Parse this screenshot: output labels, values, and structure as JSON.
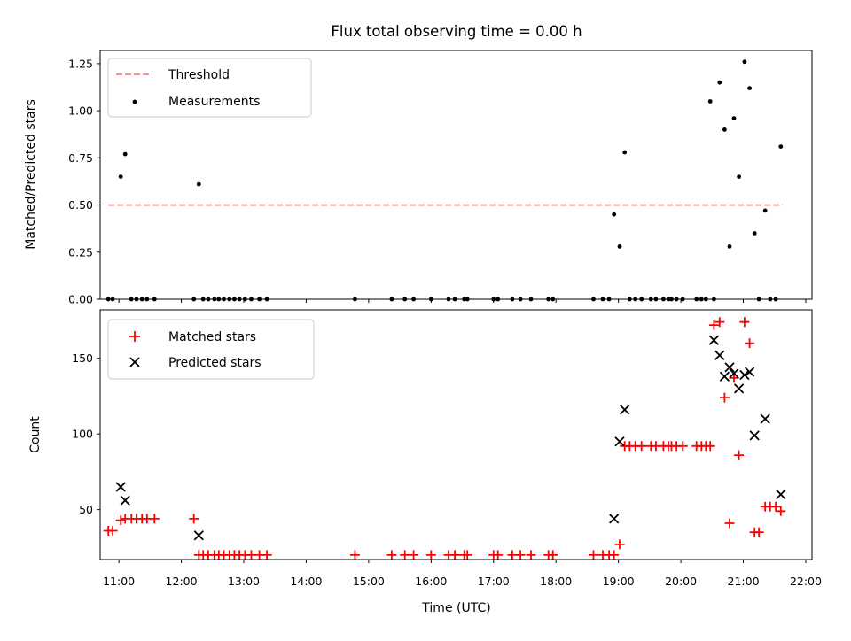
{
  "chart_data": [
    {
      "type": "scatter",
      "title": "Flux total observing time = 0.00 h",
      "xlabel": "",
      "ylabel": "Matched/Predicted stars",
      "xlim_hours": [
        10.7,
        22.1
      ],
      "ylim": [
        0,
        1.32
      ],
      "yticks": [
        "0.00",
        "0.25",
        "0.50",
        "0.75",
        "1.00",
        "1.25"
      ],
      "ytick_values": [
        0,
        0.25,
        0.5,
        0.75,
        1.0,
        1.25
      ],
      "legend_position": "top-left",
      "threshold": {
        "name": "Threshold",
        "y": 0.5,
        "x_start": 10.83,
        "x_end": 21.63,
        "color": "#ff7f7f",
        "style": "dashed"
      },
      "series": [
        {
          "name": "Measurements",
          "color": "#000000",
          "marker": "dot",
          "x": [
            10.83,
            10.9,
            11.03,
            11.1,
            11.2,
            11.28,
            11.37,
            11.45,
            11.57,
            12.2,
            12.28,
            12.35,
            12.43,
            12.53,
            12.6,
            12.68,
            12.77,
            12.85,
            12.93,
            13.02,
            13.12,
            13.25,
            13.37,
            14.78,
            15.37,
            15.58,
            15.72,
            16.0,
            16.28,
            16.38,
            16.53,
            16.58,
            17.0,
            17.07,
            17.3,
            17.43,
            17.6,
            17.88,
            17.95,
            18.6,
            18.75,
            18.85,
            18.93,
            19.02,
            19.1,
            19.18,
            19.27,
            19.37,
            19.52,
            19.6,
            19.72,
            19.8,
            19.85,
            19.93,
            20.03,
            20.25,
            20.33,
            20.4,
            20.47,
            20.53,
            20.62,
            20.7,
            20.78,
            20.85,
            20.93,
            21.02,
            21.1,
            21.18,
            21.25,
            21.35,
            21.43,
            21.52,
            21.6
          ],
          "y": [
            0,
            0,
            0.65,
            0.77,
            0,
            0,
            0,
            0,
            0,
            0,
            0.61,
            0,
            0,
            0,
            0,
            0,
            0,
            0,
            0,
            0,
            0,
            0,
            0,
            0,
            0,
            0,
            0,
            0,
            0,
            0,
            0,
            0,
            0,
            0,
            0,
            0,
            0,
            0,
            0,
            0,
            0,
            0,
            0.45,
            0.28,
            0.78,
            0,
            0,
            0,
            0,
            0,
            0,
            0,
            0,
            0,
            0,
            0,
            0,
            0,
            1.05,
            0,
            1.15,
            0.9,
            0.28,
            0.96,
            0.65,
            1.26,
            1.12,
            0.35,
            0,
            0.47,
            0,
            0,
            0.81
          ]
        }
      ]
    },
    {
      "type": "scatter",
      "title": "",
      "xlabel": "Time (UTC)",
      "ylabel": "Count",
      "xlim_hours": [
        10.7,
        22.1
      ],
      "ylim": [
        17,
        182
      ],
      "yticks": [
        "50",
        "100",
        "150"
      ],
      "ytick_values": [
        50,
        100,
        150
      ],
      "xticks": [
        "11:00",
        "12:00",
        "13:00",
        "14:00",
        "15:00",
        "16:00",
        "17:00",
        "18:00",
        "19:00",
        "20:00",
        "21:00",
        "22:00"
      ],
      "xtick_values_hours": [
        11,
        12,
        13,
        14,
        15,
        16,
        17,
        18,
        19,
        20,
        21,
        22
      ],
      "legend_position": "top-left",
      "series": [
        {
          "name": "Matched stars",
          "color": "#ff0000",
          "marker": "plus",
          "x": [
            10.83,
            10.9,
            11.03,
            11.1,
            11.2,
            11.28,
            11.37,
            11.45,
            11.57,
            12.2,
            12.28,
            12.35,
            12.43,
            12.53,
            12.6,
            12.68,
            12.77,
            12.85,
            12.93,
            13.02,
            13.12,
            13.25,
            13.37,
            14.78,
            15.37,
            15.58,
            15.72,
            16.0,
            16.28,
            16.38,
            16.53,
            16.58,
            17.0,
            17.07,
            17.3,
            17.43,
            17.6,
            17.88,
            17.95,
            18.6,
            18.75,
            18.85,
            18.93,
            19.02,
            19.1,
            19.18,
            19.27,
            19.37,
            19.52,
            19.6,
            19.72,
            19.8,
            19.85,
            19.93,
            20.03,
            20.25,
            20.33,
            20.4,
            20.47,
            20.53,
            20.62,
            20.7,
            20.78,
            20.85,
            20.93,
            21.02,
            21.1,
            21.18,
            21.25,
            21.35,
            21.43,
            21.52,
            21.6
          ],
          "y": [
            36,
            36,
            43,
            44,
            44,
            44,
            44,
            44,
            44,
            44,
            20,
            20,
            20,
            20,
            20,
            20,
            20,
            20,
            20,
            20,
            20,
            20,
            20,
            20,
            20,
            20,
            20,
            20,
            20,
            20,
            20,
            20,
            20,
            20,
            20,
            20,
            20,
            20,
            20,
            20,
            20,
            20,
            20,
            27,
            92,
            92,
            92,
            92,
            92,
            92,
            92,
            92,
            92,
            92,
            92,
            92,
            92,
            92,
            92,
            172,
            174,
            124,
            41,
            137,
            86,
            174,
            160,
            35,
            35,
            52,
            52,
            52,
            49
          ]
        },
        {
          "name": "Predicted stars",
          "color": "#000000",
          "marker": "cross",
          "x": [
            11.03,
            11.1,
            12.28,
            18.93,
            19.02,
            19.1,
            20.53,
            20.62,
            20.7,
            20.78,
            20.85,
            20.93,
            21.02,
            21.1,
            21.18,
            21.35,
            21.6
          ],
          "y": [
            65,
            56,
            33,
            44,
            95,
            116,
            162,
            152,
            138,
            144,
            140,
            130,
            139,
            141,
            99,
            110,
            60
          ]
        }
      ]
    }
  ]
}
